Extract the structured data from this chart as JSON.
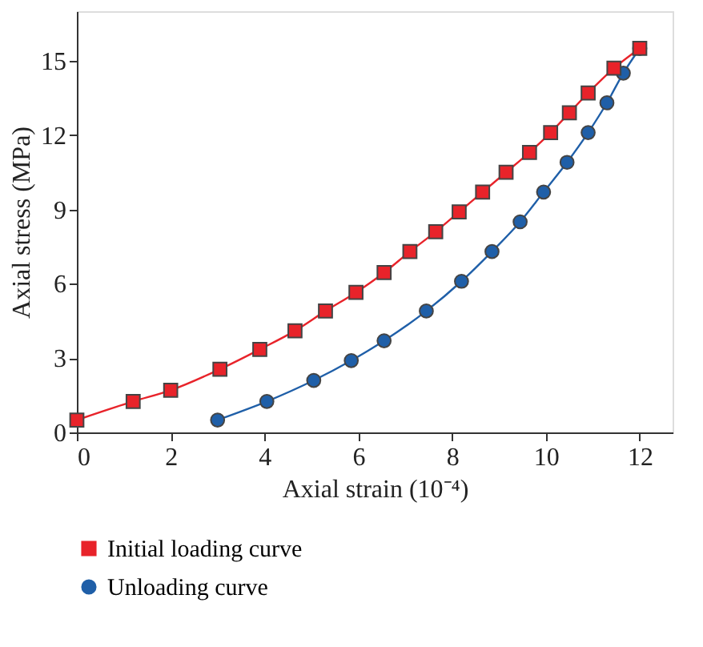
{
  "chart_data": {
    "type": "line",
    "xlabel": "Axial strain (10⁻⁴)",
    "ylabel": "Axial stress (MPa)",
    "xlim": [
      0,
      12.7
    ],
    "ylim": [
      0,
      17
    ],
    "xticks": [
      0,
      2,
      4,
      6,
      8,
      10,
      12
    ],
    "yticks": [
      0,
      3,
      6,
      9,
      12,
      15
    ],
    "grid": false,
    "legend": "bottom",
    "line_style": "solid",
    "series": [
      {
        "name": "Initial loading curve",
        "color": "#e8232a",
        "marker": "square",
        "x": [
          0,
          1.2,
          2,
          3.05,
          3.9,
          4.65,
          5.3,
          5.95,
          6.55,
          7.1,
          7.65,
          8.15,
          8.65,
          9.15,
          9.65,
          10.1,
          10.5,
          10.9,
          11.45,
          12
        ],
        "values": [
          0.5,
          1.25,
          1.7,
          2.55,
          3.35,
          4.1,
          4.9,
          5.65,
          6.45,
          7.3,
          8.1,
          8.9,
          9.7,
          10.5,
          11.3,
          12.1,
          12.9,
          13.7,
          14.7,
          15.5
        ]
      },
      {
        "name": "Unloading curve",
        "color": "#1f5fa8",
        "marker": "circle",
        "x": [
          3,
          4.05,
          5.05,
          5.85,
          6.55,
          7.45,
          8.2,
          8.85,
          9.45,
          9.95,
          10.45,
          10.9,
          11.3,
          11.65,
          12
        ],
        "values": [
          0.5,
          1.25,
          2.1,
          2.9,
          3.7,
          4.9,
          6.1,
          7.3,
          8.5,
          9.7,
          10.9,
          12.1,
          13.3,
          14.5,
          15.5
        ]
      }
    ]
  }
}
